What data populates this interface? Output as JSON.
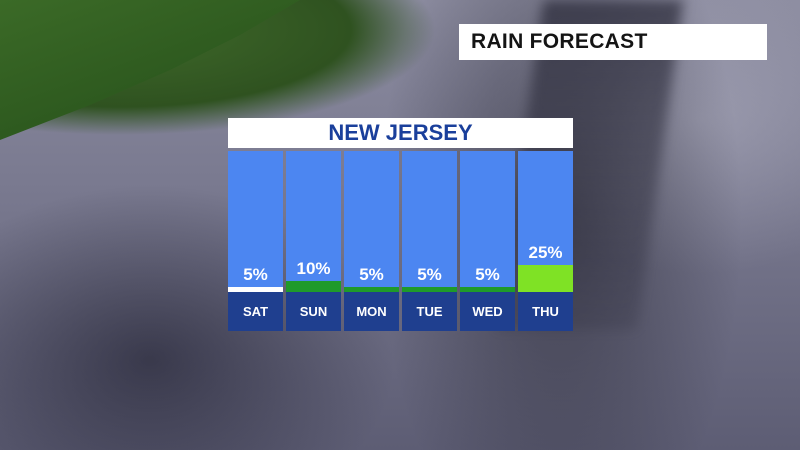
{
  "header": {
    "title": "RAIN FORECAST"
  },
  "panel": {
    "title": "NEW JERSEY"
  },
  "chart_data": {
    "type": "bar",
    "title": "NEW JERSEY",
    "categories": [
      "SAT",
      "SUN",
      "MON",
      "TUE",
      "WED",
      "THU"
    ],
    "values": [
      5,
      10,
      5,
      5,
      5,
      25
    ],
    "value_labels": [
      "5%",
      "10%",
      "5%",
      "5%",
      "5%",
      "25%"
    ],
    "unit": "%",
    "ylim": [
      0,
      100
    ],
    "bar_colors": [
      "#ffffff",
      "#1f9a2a",
      "#1f9a2a",
      "#1f9a2a",
      "#1f9a2a",
      "#7fe225"
    ]
  },
  "colors": {
    "column_background": "#4c86f1",
    "day_label_background": "#1f3f8f",
    "title_text": "#1a3f9b"
  }
}
